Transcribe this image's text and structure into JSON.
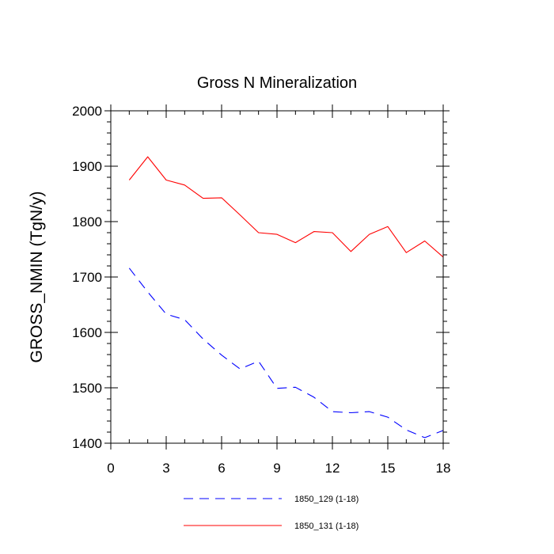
{
  "chart_data": {
    "type": "line",
    "title": "Gross N Mineralization",
    "xlabel": "",
    "ylabel": "GROSS_NMIN  (TgN/y)",
    "xlim": [
      0,
      18
    ],
    "ylim": [
      1400,
      2000
    ],
    "x_ticks": [
      0,
      3,
      6,
      9,
      12,
      15,
      18
    ],
    "x_tick_labels": [
      "0",
      "3",
      "6",
      "9",
      "12",
      "15",
      "18"
    ],
    "x_minor_step": 1,
    "y_ticks": [
      1400,
      1500,
      1600,
      1700,
      1800,
      1900,
      2000
    ],
    "y_tick_labels": [
      "1400",
      "1500",
      "1600",
      "1700",
      "1800",
      "1900",
      "2000"
    ],
    "y_minor_step": 20,
    "grid": false,
    "legend_position": "bottom",
    "x": [
      1,
      2,
      3,
      4,
      5,
      6,
      7,
      8,
      9,
      10,
      11,
      12,
      13,
      14,
      15,
      16,
      17,
      18
    ],
    "series": [
      {
        "name": "1850_129 (1-18)",
        "color": "#0000ff",
        "style": "dashed",
        "values": [
          1716,
          1673,
          1633,
          1623,
          1588,
          1559,
          1534,
          1548,
          1499,
          1501,
          1483,
          1457,
          1455,
          1457,
          1447,
          1424,
          1410,
          1423
        ]
      },
      {
        "name": "1850_131 (1-18)",
        "color": "#ff0000",
        "style": "solid",
        "values": [
          1875,
          1917,
          1875,
          1866,
          1842,
          1843,
          1812,
          1780,
          1777,
          1762,
          1782,
          1780,
          1746,
          1777,
          1791,
          1744,
          1765,
          1736
        ]
      }
    ]
  }
}
